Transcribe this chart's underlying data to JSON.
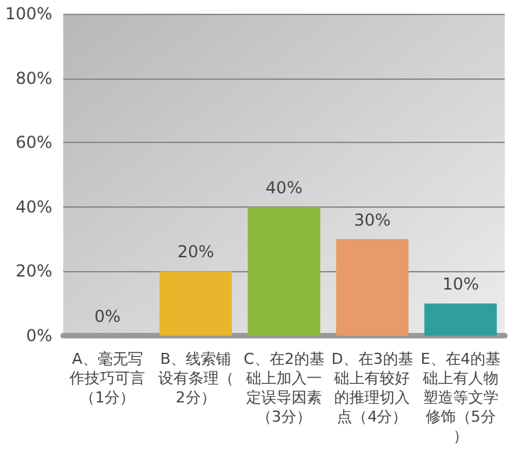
{
  "chart_data": {
    "type": "bar",
    "categories": [
      "A、毫无写作技巧可言（1分）",
      "B、线索铺设有条理（2分）",
      "C、在2的基础上加入一定误导因素（3分）",
      "D、在3的基础上有较好的推理切入点（4分）",
      "E、在4的基础上有人物塑造等文学修饰（5分）"
    ],
    "values": [
      0,
      20,
      40,
      30,
      10
    ],
    "colors": [
      "#b9d8f0",
      "#e8b62c",
      "#8ab83a",
      "#e89a6a",
      "#2e9e9e"
    ],
    "value_labels": [
      "0%",
      "20%",
      "40%",
      "30%",
      "10%"
    ],
    "ylim": [
      0,
      100
    ],
    "yticks": [
      {
        "value": 0,
        "label": "0%"
      },
      {
        "value": 20,
        "label": "20%"
      },
      {
        "value": 40,
        "label": "40%"
      },
      {
        "value": 60,
        "label": "60%"
      },
      {
        "value": 80,
        "label": "80%"
      },
      {
        "value": 100,
        "label": "100%"
      }
    ],
    "grid": "y"
  }
}
